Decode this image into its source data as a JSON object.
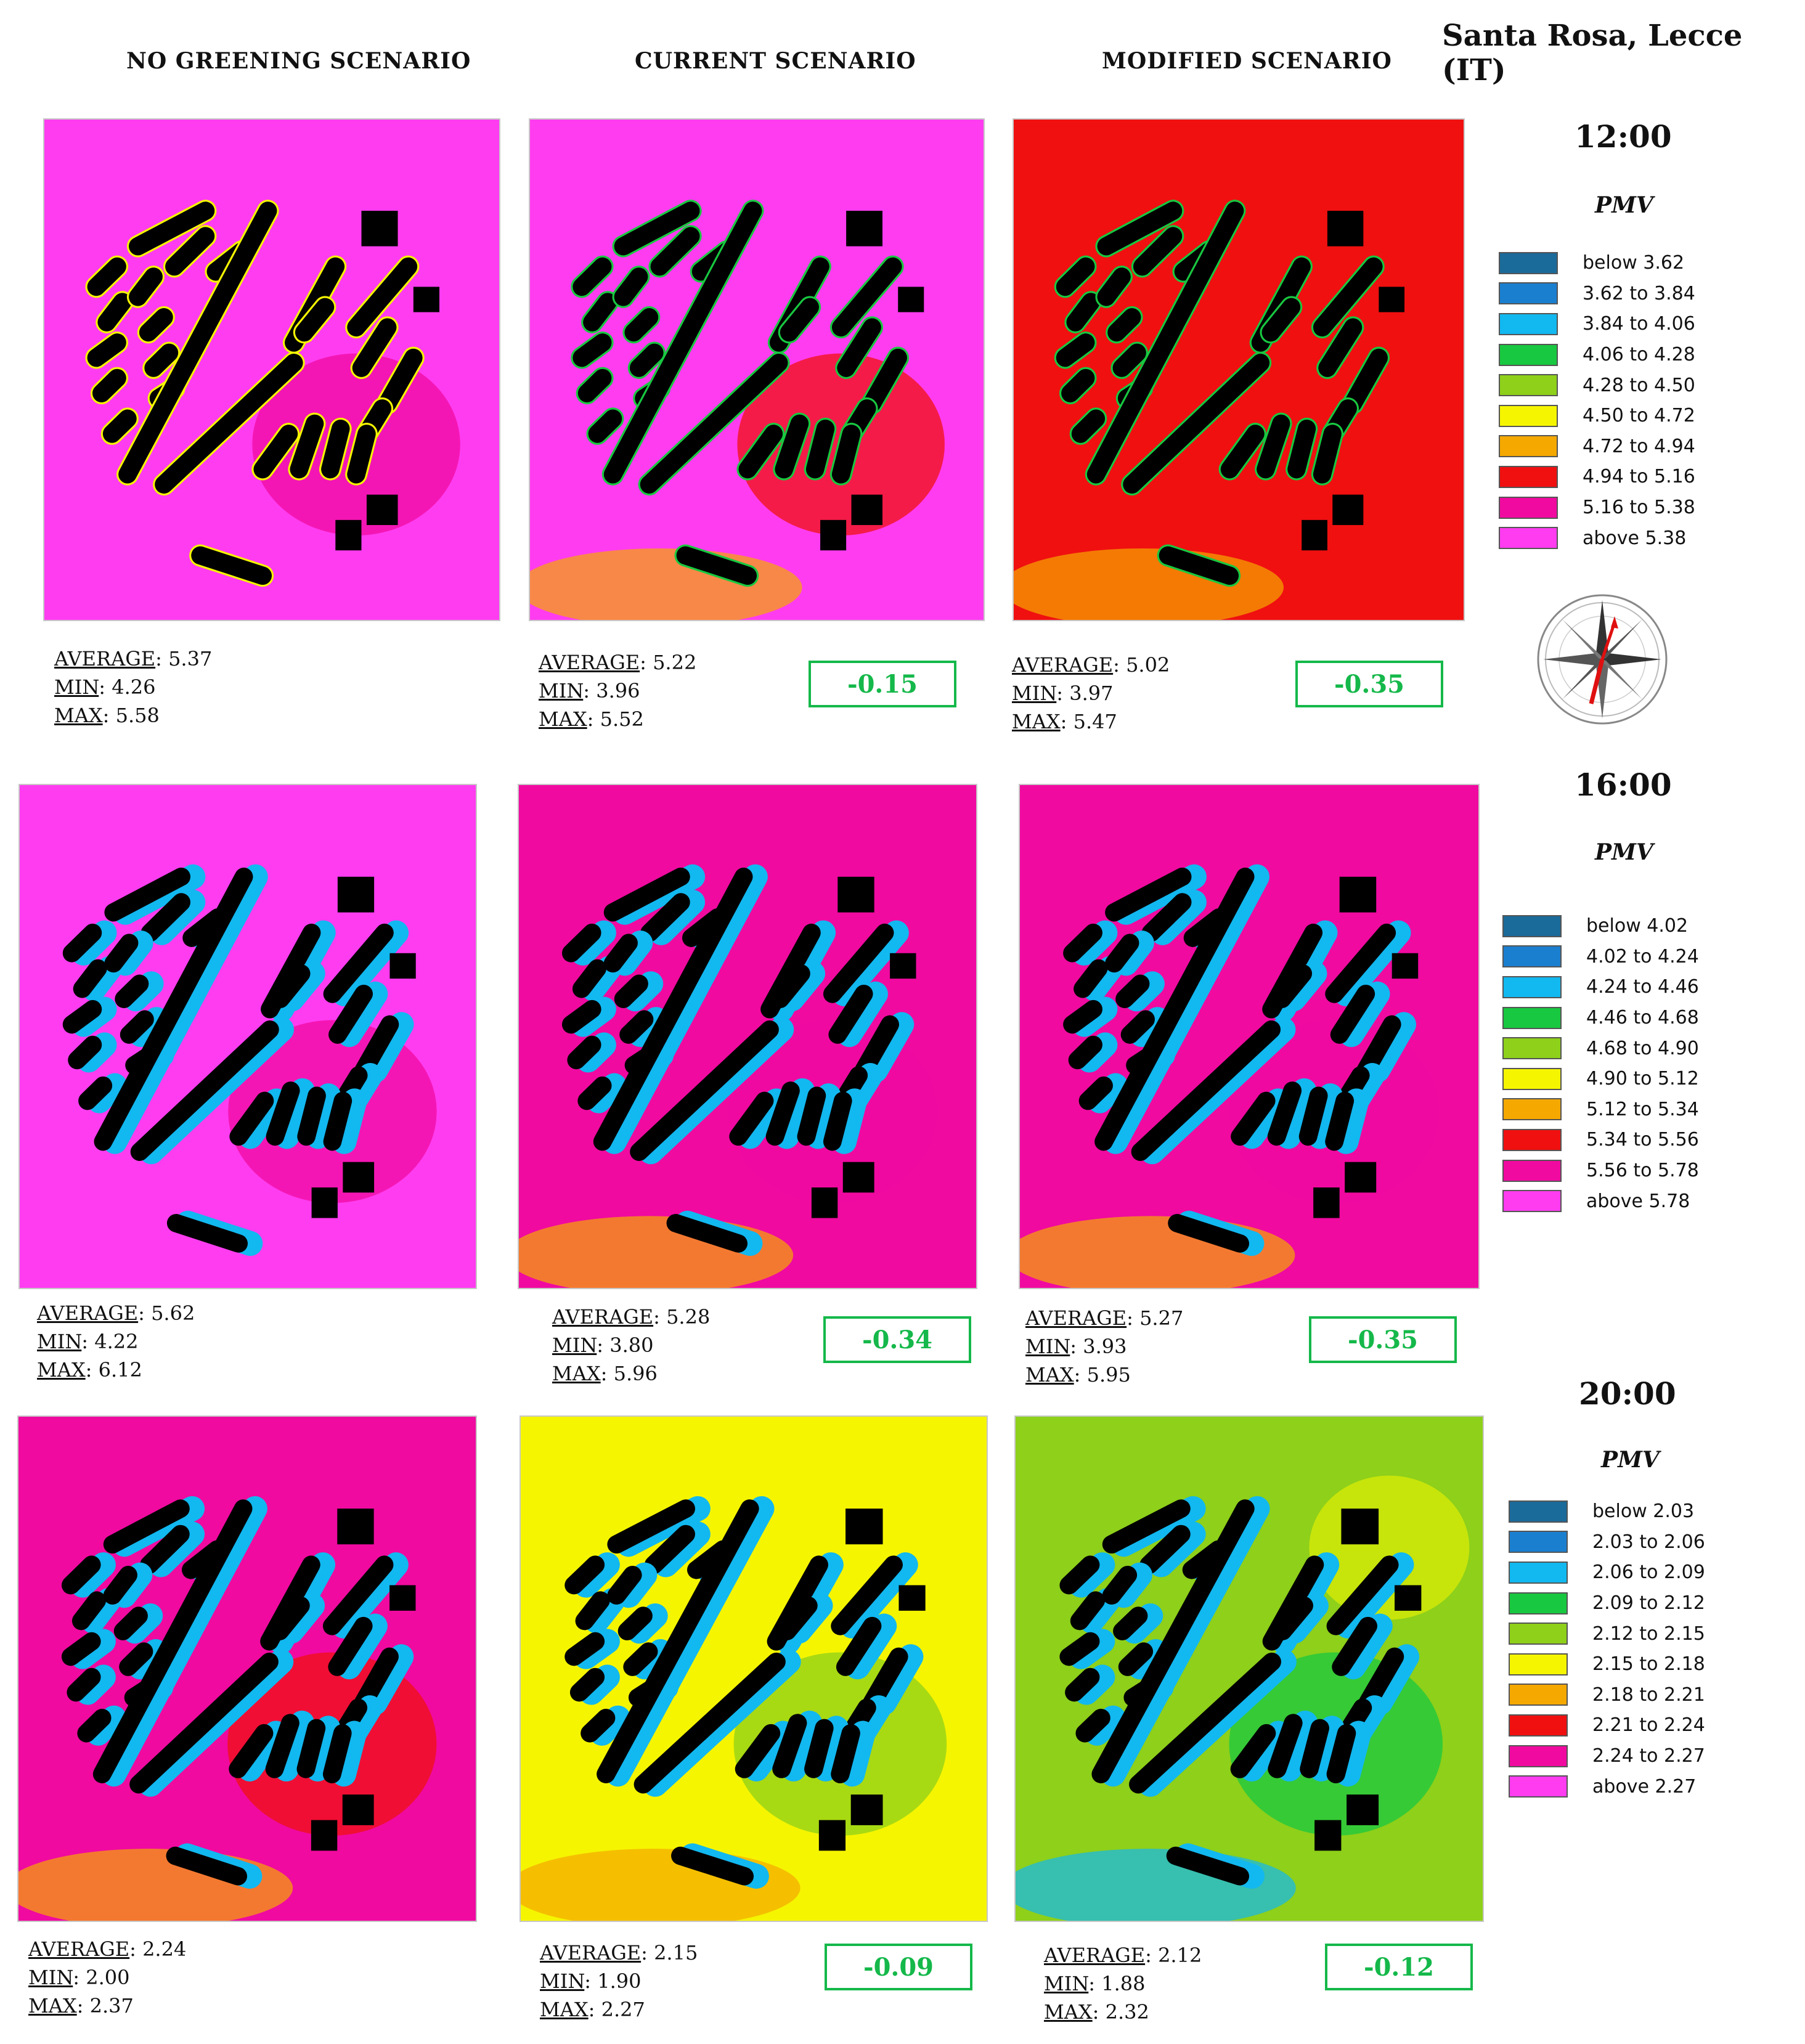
{
  "title": "Santa Rosa, Lecce (IT)",
  "columns": [
    "NO GREENING SCENARIO",
    "CURRENT SCENARIO",
    "MODIFIED SCENARIO"
  ],
  "stat_labels": {
    "average": "AVERAGE",
    "min": "MIN",
    "max": "MAX"
  },
  "legend_title": "PMV",
  "legend_colors": [
    "#1a6a9a",
    "#1b7fd0",
    "#12b8f0",
    "#18c840",
    "#8ed01a",
    "#f5f500",
    "#f5a800",
    "#f01010",
    "#f00aa0",
    "#ff3cf0"
  ],
  "times": [
    {
      "time": "12:00",
      "legend": [
        "below 3.62",
        "3.62 to 3.84",
        "3.84 to 4.06",
        "4.06 to 4.28",
        "4.28 to 4.50",
        "4.50 to 4.72",
        "4.72 to 4.94",
        "4.94 to 5.16",
        "5.16 to 5.38",
        "above 5.38"
      ],
      "scenarios": [
        {
          "average": ": 5.37",
          "min": ": 4.26",
          "max": ": 5.58",
          "delta": ""
        },
        {
          "average": ": 5.22",
          "min": ": 3.96",
          "max": ": 5.52",
          "delta": "-0.15"
        },
        {
          "average": ": 5.02",
          "min": ": 3.97",
          "max": ": 5.47",
          "delta": "-0.35"
        }
      ]
    },
    {
      "time": "16:00",
      "legend": [
        "below 4.02",
        "4.02 to 4.24",
        "4.24 to 4.46",
        "4.46 to 4.68",
        "4.68 to 4.90",
        "4.90 to 5.12",
        "5.12 to 5.34",
        "5.34 to 5.56",
        "5.56 to 5.78",
        "above 5.78"
      ],
      "scenarios": [
        {
          "average": ": 5.62",
          "min": ": 4.22",
          "max": ": 6.12",
          "delta": ""
        },
        {
          "average": ": 5.28",
          "min": ": 3.80",
          "max": ": 5.96",
          "delta": "-0.34"
        },
        {
          "average": ": 5.27",
          "min": ": 3.93",
          "max": ": 5.95",
          "delta": "-0.35"
        }
      ]
    },
    {
      "time": "20:00",
      "legend": [
        "below 2.03",
        "2.03 to 2.06",
        "2.06 to 2.09",
        "2.09 to 2.12",
        "2.12 to 2.15",
        "2.15 to 2.18",
        "2.18 to 2.21",
        "2.21 to 2.24",
        "2.24 to 2.27",
        "above 2.27"
      ],
      "scenarios": [
        {
          "average": ": 2.24",
          "min": ": 2.00",
          "max": ": 2.37",
          "delta": ""
        },
        {
          "average": ": 2.15",
          "min": ": 1.90",
          "max": ": 2.27",
          "delta": "-0.09"
        },
        {
          "average": ": 2.12",
          "min": ": 1.88",
          "max": ": 2.32",
          "delta": "-0.12"
        }
      ]
    }
  ],
  "maps": [
    [
      "#ff3cf0",
      "#ff3cf0",
      "#f01010"
    ],
    [
      "#ff3cf0",
      "#f00aa0",
      "#f00aa0"
    ],
    [
      "#f00aa0",
      "#f5f500",
      "#8ed01a"
    ]
  ],
  "map_features": [
    [
      "pink",
      "red-green-trees",
      "red-orange-trees"
    ],
    [
      "cyan-shadows",
      "blue-shadows",
      "blue-shadows"
    ],
    [
      "red-orange-halos",
      "yellow-green",
      "green-blue-red"
    ]
  ]
}
